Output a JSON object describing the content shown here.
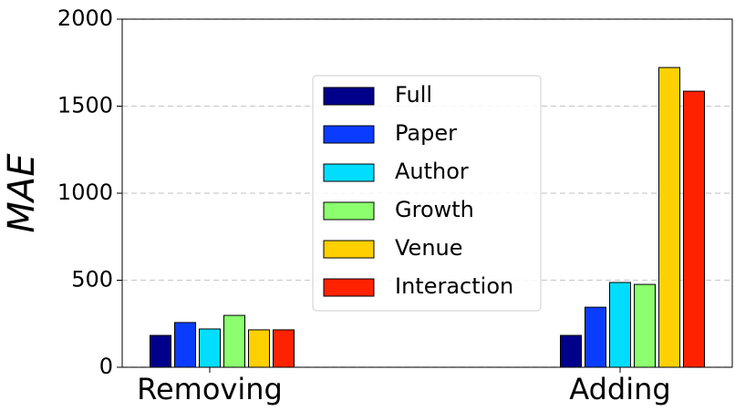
{
  "chart_data": {
    "type": "bar",
    "ylabel": "MAE",
    "categories": [
      "Removing",
      "Adding"
    ],
    "series": [
      {
        "name": "Full",
        "color": "#00008b",
        "values": [
          183,
          183
        ]
      },
      {
        "name": "Paper",
        "color": "#0a3cff",
        "values": [
          257,
          345
        ]
      },
      {
        "name": "Author",
        "color": "#00ddff",
        "values": [
          220,
          487
        ]
      },
      {
        "name": "Growth",
        "color": "#8cff6e",
        "values": [
          298,
          476
        ]
      },
      {
        "name": "Venue",
        "color": "#ffd000",
        "values": [
          215,
          1722
        ]
      },
      {
        "name": "Interaction",
        "color": "#ff2200",
        "values": [
          215,
          1586
        ]
      }
    ],
    "ylim": [
      0,
      2000
    ],
    "yticks": [
      0,
      500,
      1000,
      1500,
      2000
    ],
    "grid": true,
    "legend": "center"
  }
}
